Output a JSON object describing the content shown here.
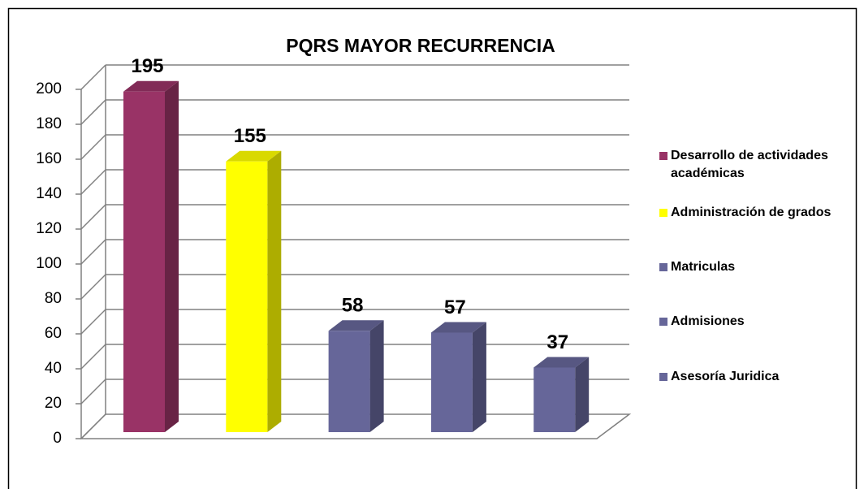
{
  "chart_data": {
    "type": "bar3d",
    "title": "PQRS MAYOR RECURRENCIA",
    "categories": [
      "Desarrollo de actividades académicas",
      "Administración de grados",
      "Matriculas",
      "Admisiones",
      "Asesoría Juridica"
    ],
    "values": [
      195,
      155,
      58,
      57,
      37
    ],
    "colors": [
      "#993366",
      "#ffff00",
      "#666699",
      "#666699",
      "#666699"
    ],
    "ylim": [
      0,
      200
    ],
    "yticks": [
      0,
      20,
      40,
      60,
      80,
      100,
      120,
      140,
      160,
      180,
      200
    ],
    "grid": true
  }
}
